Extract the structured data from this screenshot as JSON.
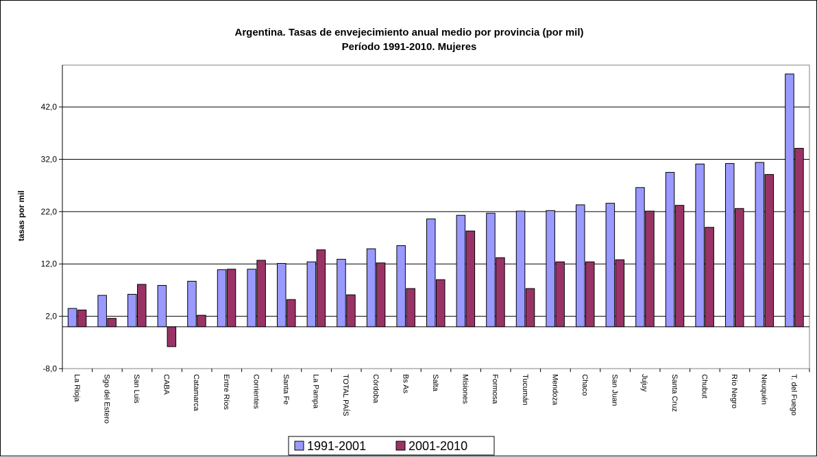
{
  "chart_data": {
    "type": "bar",
    "title": "Argentina. Tasas de envejecimiento anual medio por provincia (por mil)",
    "subtitle": "Período 1991-2010. Mujeres",
    "xlabel": "",
    "ylabel": "tasas por mil",
    "ylim": [
      -8,
      50
    ],
    "yticks": [
      "-8,0",
      "2,0",
      "12,0",
      "22,0",
      "32,0",
      "42,0"
    ],
    "ytick_values": [
      -8,
      2,
      12,
      22,
      32,
      42
    ],
    "grid": "horizontal",
    "legend": "bottom",
    "categories": [
      "La Rioja",
      "Sgo del Estero",
      "San Luis",
      "CABA",
      "Catamarca",
      "Entre Ríos",
      "Corrientes",
      "Santa Fe",
      "La Pampa",
      "TOTAL PAÍS",
      "Córdoba",
      "Bs As",
      "Salta",
      "Misiones",
      "Formosa",
      "Tucumán",
      "Mendoza",
      "Chaco",
      "San Juan",
      "Jujuy",
      "Santa Cruz",
      "Chubut",
      "Río Negro",
      "Neuquén",
      "T. del Fuego"
    ],
    "series": [
      {
        "name": "1991-2001",
        "color": "#9999ff",
        "values": [
          3.5,
          6.0,
          6.2,
          7.9,
          8.7,
          10.9,
          11.0,
          12.1,
          12.4,
          12.9,
          14.9,
          15.5,
          20.6,
          21.3,
          21.7,
          22.1,
          22.2,
          23.3,
          23.6,
          26.6,
          29.5,
          31.1,
          31.2,
          31.4,
          48.3
        ]
      },
      {
        "name": "2001-2010",
        "color": "#993366",
        "values": [
          3.2,
          1.6,
          8.1,
          -3.8,
          2.2,
          11.0,
          12.7,
          5.2,
          14.7,
          6.1,
          12.2,
          7.3,
          9.0,
          18.3,
          13.2,
          7.3,
          12.4,
          12.4,
          12.8,
          22.1,
          23.2,
          19.0,
          22.6,
          29.1,
          34.1
        ]
      }
    ]
  }
}
